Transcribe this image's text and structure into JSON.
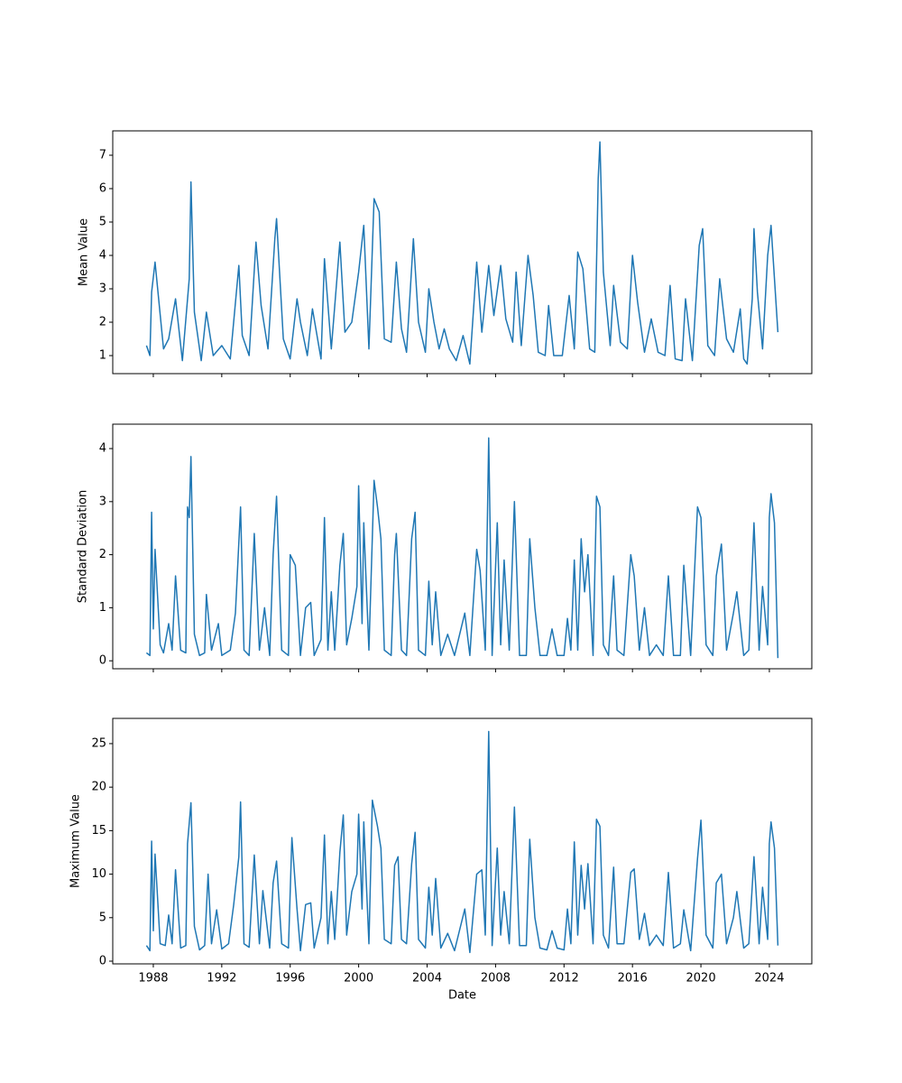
{
  "chart_data": [
    {
      "type": "line",
      "ylabel": "Mean Value",
      "color": "#1f77b4",
      "xlim": [
        1985.63,
        2026.48
      ],
      "xticks": [
        1988,
        1992,
        1996,
        2000,
        2004,
        2008,
        2012,
        2016,
        2020,
        2024
      ],
      "ylim": [
        0.46,
        7.73
      ],
      "yticks": [
        1,
        2,
        3,
        4,
        5,
        6,
        7
      ],
      "x": [
        1987.6,
        1987.8,
        1987.9,
        1988.1,
        1988.6,
        1988.9,
        1989.3,
        1989.7,
        1990.1,
        1990.2,
        1990.4,
        1990.8,
        1991.1,
        1991.5,
        1992.0,
        1992.5,
        1993.0,
        1993.2,
        1993.6,
        1994.0,
        1994.3,
        1994.7,
        1995.1,
        1995.2,
        1995.6,
        1996.0,
        1996.4,
        1996.6,
        1997.0,
        1997.3,
        1997.8,
        1998.0,
        1998.4,
        1998.9,
        1999.2,
        1999.6,
        2000.0,
        2000.3,
        2000.6,
        2000.9,
        2001.2,
        2001.5,
        2001.9,
        2002.2,
        2002.5,
        2002.8,
        2003.2,
        2003.5,
        2003.9,
        2004.1,
        2004.4,
        2004.7,
        2005.0,
        2005.3,
        2005.7,
        2006.1,
        2006.5,
        2006.9,
        2007.2,
        2007.6,
        2007.9,
        2008.3,
        2008.6,
        2009.0,
        2009.2,
        2009.5,
        2009.9,
        2010.2,
        2010.5,
        2010.9,
        2011.1,
        2011.4,
        2011.9,
        2012.3,
        2012.6,
        2012.8,
        2013.1,
        2013.5,
        2013.8,
        2014.0,
        2014.1,
        2014.3,
        2014.7,
        2014.9,
        2015.3,
        2015.7,
        2016.0,
        2016.3,
        2016.7,
        2017.1,
        2017.5,
        2017.9,
        2018.2,
        2018.5,
        2018.9,
        2019.1,
        2019.5,
        2019.9,
        2020.1,
        2020.4,
        2020.8,
        2021.1,
        2021.5,
        2021.9,
        2022.3,
        2022.5,
        2022.7,
        2023.0,
        2023.1,
        2023.3,
        2023.6,
        2023.9,
        2024.1,
        2024.5
      ],
      "values": [
        1.3,
        1.0,
        2.9,
        3.8,
        1.2,
        1.5,
        2.7,
        0.85,
        3.3,
        6.2,
        2.3,
        0.85,
        2.3,
        1.0,
        1.3,
        0.9,
        3.7,
        1.6,
        1.0,
        4.4,
        2.5,
        1.2,
        4.5,
        5.1,
        1.5,
        0.9,
        2.7,
        2.0,
        1.0,
        2.4,
        0.9,
        3.9,
        1.2,
        4.4,
        1.7,
        2.0,
        3.5,
        4.9,
        1.2,
        5.7,
        5.3,
        1.5,
        1.4,
        3.8,
        1.8,
        1.1,
        4.5,
        2.0,
        1.1,
        3.0,
        2.0,
        1.2,
        1.8,
        1.2,
        0.85,
        1.6,
        0.75,
        3.8,
        1.7,
        3.7,
        2.2,
        3.7,
        2.1,
        1.4,
        3.5,
        1.3,
        4.0,
        2.8,
        1.1,
        1.0,
        2.5,
        1.0,
        1.0,
        2.8,
        1.2,
        4.1,
        3.6,
        1.2,
        1.1,
        6.3,
        7.4,
        3.5,
        1.3,
        3.1,
        1.4,
        1.2,
        4.0,
        2.6,
        1.1,
        2.1,
        1.1,
        1.0,
        3.1,
        0.9,
        0.85,
        2.7,
        0.85,
        4.3,
        4.8,
        1.3,
        1.0,
        3.3,
        1.5,
        1.1,
        2.4,
        0.9,
        0.75,
        2.7,
        4.8,
        2.9,
        1.2,
        4.0,
        4.9,
        1.7
      ]
    },
    {
      "type": "line",
      "ylabel": "Standard Deviation",
      "color": "#1f77b4",
      "xlim": [
        1985.63,
        2026.48
      ],
      "xticks": [
        1988,
        1992,
        1996,
        2000,
        2004,
        2008,
        2012,
        2016,
        2020,
        2024
      ],
      "ylim": [
        -0.15,
        4.46
      ],
      "yticks": [
        0,
        1,
        2,
        3,
        4
      ],
      "x": [
        1987.6,
        1987.8,
        1987.9,
        1988.0,
        1988.1,
        1988.4,
        1988.6,
        1988.9,
        1989.1,
        1989.3,
        1989.6,
        1989.9,
        1990.0,
        1990.1,
        1990.2,
        1990.4,
        1990.7,
        1991.0,
        1991.1,
        1991.4,
        1991.8,
        1992.0,
        1992.5,
        1992.8,
        1993.1,
        1993.3,
        1993.6,
        1993.9,
        1994.2,
        1994.5,
        1994.8,
        1995.0,
        1995.2,
        1995.5,
        1995.9,
        1996.0,
        1996.3,
        1996.6,
        1996.9,
        1997.2,
        1997.4,
        1997.8,
        1998.0,
        1998.2,
        1998.4,
        1998.6,
        1998.9,
        1999.1,
        1999.3,
        1999.6,
        1999.9,
        2000.0,
        2000.2,
        2000.3,
        2000.6,
        2000.9,
        2001.1,
        2001.3,
        2001.5,
        2001.9,
        2002.1,
        2002.2,
        2002.5,
        2002.8,
        2003.1,
        2003.3,
        2003.5,
        2003.9,
        2004.1,
        2004.3,
        2004.5,
        2004.8,
        2005.2,
        2005.6,
        2006.2,
        2006.5,
        2006.9,
        2007.1,
        2007.4,
        2007.6,
        2007.8,
        2008.1,
        2008.3,
        2008.5,
        2008.8,
        2009.1,
        2009.4,
        2009.8,
        2010.0,
        2010.3,
        2010.6,
        2011.0,
        2011.3,
        2011.6,
        2012.0,
        2012.2,
        2012.4,
        2012.6,
        2012.8,
        2013.0,
        2013.2,
        2013.4,
        2013.7,
        2013.9,
        2014.1,
        2014.3,
        2014.6,
        2014.9,
        2015.1,
        2015.5,
        2015.9,
        2016.1,
        2016.4,
        2016.7,
        2017.0,
        2017.4,
        2017.8,
        2018.1,
        2018.4,
        2018.8,
        2019.0,
        2019.4,
        2019.8,
        2020.0,
        2020.3,
        2020.7,
        2020.9,
        2021.2,
        2021.5,
        2021.9,
        2022.1,
        2022.5,
        2022.8,
        2023.1,
        2023.4,
        2023.6,
        2023.9,
        2024.0,
        2024.1,
        2024.3,
        2024.5
      ],
      "values": [
        0.15,
        0.1,
        2.8,
        0.6,
        2.1,
        0.3,
        0.15,
        0.7,
        0.2,
        1.6,
        0.2,
        0.15,
        2.9,
        2.7,
        3.85,
        0.5,
        0.1,
        0.15,
        1.25,
        0.2,
        0.7,
        0.1,
        0.2,
        0.9,
        2.9,
        0.2,
        0.1,
        2.4,
        0.2,
        1.0,
        0.1,
        2.0,
        3.1,
        0.2,
        0.1,
        2.0,
        1.8,
        0.1,
        1.0,
        1.1,
        0.1,
        0.4,
        2.7,
        0.2,
        1.3,
        0.2,
        1.8,
        2.4,
        0.3,
        0.8,
        1.4,
        3.3,
        0.7,
        2.6,
        0.2,
        3.4,
        2.9,
        2.3,
        0.2,
        0.1,
        2.0,
        2.4,
        0.2,
        0.1,
        2.3,
        2.8,
        0.2,
        0.1,
        1.5,
        0.3,
        1.3,
        0.1,
        0.5,
        0.1,
        0.9,
        0.1,
        2.1,
        1.7,
        0.2,
        4.2,
        0.1,
        2.6,
        0.3,
        1.9,
        0.2,
        3.0,
        0.1,
        0.1,
        2.3,
        1.0,
        0.1,
        0.1,
        0.6,
        0.1,
        0.1,
        0.8,
        0.2,
        1.9,
        0.2,
        2.3,
        1.3,
        2.0,
        0.1,
        3.1,
        2.9,
        0.3,
        0.1,
        1.6,
        0.2,
        0.1,
        2.0,
        1.6,
        0.2,
        1.0,
        0.1,
        0.3,
        0.1,
        1.6,
        0.1,
        0.1,
        1.8,
        0.1,
        2.9,
        2.7,
        0.3,
        0.1,
        1.6,
        2.2,
        0.2,
        0.9,
        1.3,
        0.1,
        0.2,
        2.6,
        0.2,
        1.4,
        0.3,
        2.7,
        3.15,
        2.6,
        0.05
      ]
    },
    {
      "type": "line",
      "ylabel": "Maximum Value",
      "xlabel": "Date",
      "color": "#1f77b4",
      "xlim": [
        1985.63,
        2026.48
      ],
      "xticks": [
        1988,
        1992,
        1996,
        2000,
        2004,
        2008,
        2012,
        2016,
        2020,
        2024
      ],
      "ylim": [
        -0.31,
        27.9
      ],
      "yticks": [
        0,
        5,
        10,
        15,
        20,
        25
      ],
      "x": [
        1987.6,
        1987.8,
        1987.9,
        1988.0,
        1988.1,
        1988.4,
        1988.7,
        1988.9,
        1989.1,
        1989.3,
        1989.6,
        1989.9,
        1990.0,
        1990.2,
        1990.4,
        1990.7,
        1991.0,
        1991.2,
        1991.4,
        1991.7,
        1992.0,
        1992.4,
        1992.7,
        1993.0,
        1993.1,
        1993.3,
        1993.6,
        1993.9,
        1994.2,
        1994.4,
        1994.8,
        1995.0,
        1995.2,
        1995.5,
        1995.9,
        1996.1,
        1996.4,
        1996.6,
        1996.9,
        1997.2,
        1997.4,
        1997.8,
        1998.0,
        1998.2,
        1998.4,
        1998.6,
        1998.9,
        1999.1,
        1999.3,
        1999.6,
        1999.9,
        2000.0,
        2000.2,
        2000.3,
        2000.6,
        2000.8,
        2001.1,
        2001.3,
        2001.5,
        2001.9,
        2002.1,
        2002.3,
        2002.5,
        2002.8,
        2003.1,
        2003.3,
        2003.5,
        2003.9,
        2004.1,
        2004.3,
        2004.5,
        2004.8,
        2005.2,
        2005.6,
        2006.2,
        2006.5,
        2006.9,
        2007.2,
        2007.4,
        2007.6,
        2007.8,
        2008.1,
        2008.3,
        2008.5,
        2008.8,
        2009.1,
        2009.4,
        2009.8,
        2010.0,
        2010.3,
        2010.6,
        2011.0,
        2011.3,
        2011.6,
        2012.0,
        2012.2,
        2012.4,
        2012.6,
        2012.8,
        2013.0,
        2013.2,
        2013.4,
        2013.7,
        2013.9,
        2014.1,
        2014.3,
        2014.6,
        2014.9,
        2015.1,
        2015.5,
        2015.9,
        2016.1,
        2016.4,
        2016.7,
        2017.0,
        2017.4,
        2017.8,
        2018.1,
        2018.4,
        2018.8,
        2019.0,
        2019.4,
        2019.8,
        2020.0,
        2020.3,
        2020.7,
        2020.9,
        2021.2,
        2021.5,
        2021.9,
        2022.1,
        2022.5,
        2022.8,
        2023.1,
        2023.4,
        2023.6,
        2023.9,
        2024.0,
        2024.1,
        2024.3,
        2024.5
      ],
      "values": [
        1.8,
        1.2,
        13.8,
        3.5,
        12.3,
        2.0,
        1.8,
        5.3,
        2.0,
        10.5,
        1.5,
        1.8,
        13.5,
        18.2,
        4.0,
        1.3,
        1.8,
        10.0,
        2.0,
        5.9,
        1.4,
        2.0,
        6.5,
        12.0,
        18.3,
        2.0,
        1.6,
        12.2,
        2.0,
        8.1,
        1.5,
        9.0,
        11.5,
        2.0,
        1.5,
        14.2,
        6.0,
        1.2,
        6.5,
        6.7,
        1.5,
        5.0,
        14.5,
        2.0,
        8.0,
        2.5,
        12.5,
        16.8,
        3.0,
        8.0,
        10.0,
        16.9,
        6.0,
        16.0,
        2.0,
        18.5,
        15.5,
        13.0,
        2.5,
        2.0,
        11.0,
        12.0,
        2.5,
        2.0,
        11.2,
        14.8,
        2.5,
        1.5,
        8.5,
        3.0,
        9.5,
        1.5,
        3.2,
        1.2,
        6.0,
        1.0,
        10.0,
        10.5,
        3.0,
        26.4,
        1.8,
        13.0,
        3.0,
        8.0,
        2.0,
        17.7,
        1.8,
        1.8,
        14.0,
        5.0,
        1.5,
        1.3,
        3.5,
        1.5,
        1.3,
        6.0,
        2.0,
        13.7,
        3.0,
        11.0,
        6.0,
        11.2,
        2.0,
        16.3,
        15.5,
        3.0,
        1.5,
        10.8,
        2.0,
        2.0,
        10.2,
        10.6,
        2.5,
        5.5,
        1.8,
        3.0,
        1.8,
        10.2,
        1.5,
        2.0,
        5.9,
        1.2,
        11.8,
        16.2,
        3.0,
        1.5,
        9.0,
        10.0,
        2.0,
        5.0,
        8.0,
        1.5,
        2.0,
        12.0,
        2.0,
        8.5,
        2.5,
        13.5,
        16.0,
        13.0,
        1.8
      ]
    }
  ]
}
